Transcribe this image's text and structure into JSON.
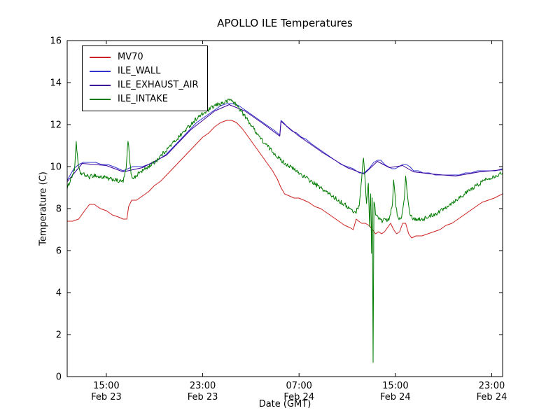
{
  "chart_data": {
    "type": "line",
    "title": "APOLLO ILE Temperatures",
    "xlabel": "Date (GMT)",
    "ylabel": "Temperature (C)",
    "x_unit": "hours since Feb 23 00:00 GMT",
    "xlim": [
      11.75,
      47.9
    ],
    "ylim": [
      0,
      16
    ],
    "yticks": [
      0,
      2,
      4,
      6,
      8,
      10,
      12,
      14,
      16
    ],
    "xticks": [
      {
        "x": 15,
        "label": "15:00",
        "sublabel": "Feb 23"
      },
      {
        "x": 23,
        "label": "23:00",
        "sublabel": "Feb 23"
      },
      {
        "x": 31,
        "label": "07:00",
        "sublabel": "Feb 24"
      },
      {
        "x": 39,
        "label": "15:00",
        "sublabel": "Feb 24"
      },
      {
        "x": 47,
        "label": "23:00",
        "sublabel": "Feb 24"
      }
    ],
    "grid": false,
    "legend_position": "upper left",
    "series": [
      {
        "name": "MV70",
        "color": "#cc2222",
        "noise": 0,
        "points": [
          [
            11.7,
            7.4
          ],
          [
            12.2,
            7.4
          ],
          [
            12.7,
            7.5
          ],
          [
            13.2,
            7.9
          ],
          [
            13.6,
            8.2
          ],
          [
            14.0,
            8.2
          ],
          [
            14.5,
            8.0
          ],
          [
            15.0,
            7.9
          ],
          [
            15.5,
            7.7
          ],
          [
            16.0,
            7.6
          ],
          [
            16.4,
            7.5
          ],
          [
            16.7,
            7.5
          ],
          [
            16.85,
            8.1
          ],
          [
            17.1,
            8.4
          ],
          [
            17.5,
            8.4
          ],
          [
            18.0,
            8.6
          ],
          [
            18.5,
            8.8
          ],
          [
            19.0,
            9.1
          ],
          [
            19.5,
            9.3
          ],
          [
            20.0,
            9.6
          ],
          [
            20.5,
            9.9
          ],
          [
            21.0,
            10.2
          ],
          [
            21.5,
            10.5
          ],
          [
            22.0,
            10.8
          ],
          [
            22.5,
            11.1
          ],
          [
            23.0,
            11.4
          ],
          [
            23.5,
            11.6
          ],
          [
            24.0,
            11.9
          ],
          [
            24.5,
            12.1
          ],
          [
            25.0,
            12.2
          ],
          [
            25.4,
            12.2
          ],
          [
            25.8,
            12.1
          ],
          [
            26.3,
            11.8
          ],
          [
            26.8,
            11.4
          ],
          [
            27.3,
            11.0
          ],
          [
            27.8,
            10.6
          ],
          [
            28.3,
            10.2
          ],
          [
            28.8,
            9.8
          ],
          [
            29.2,
            9.4
          ],
          [
            29.5,
            9.0
          ],
          [
            29.8,
            8.7
          ],
          [
            30.2,
            8.6
          ],
          [
            30.6,
            8.5
          ],
          [
            31.0,
            8.5
          ],
          [
            31.4,
            8.4
          ],
          [
            31.8,
            8.3
          ],
          [
            32.3,
            8.1
          ],
          [
            32.8,
            8.0
          ],
          [
            33.3,
            7.8
          ],
          [
            33.8,
            7.6
          ],
          [
            34.3,
            7.4
          ],
          [
            34.8,
            7.2
          ],
          [
            35.2,
            7.1
          ],
          [
            35.5,
            7.0
          ],
          [
            35.75,
            7.5
          ],
          [
            35.95,
            7.4
          ],
          [
            36.2,
            7.3
          ],
          [
            36.5,
            7.3
          ],
          [
            36.8,
            7.2
          ],
          [
            37.1,
            7.0
          ],
          [
            37.35,
            6.8
          ],
          [
            37.6,
            6.9
          ],
          [
            37.85,
            6.8
          ],
          [
            38.1,
            6.9
          ],
          [
            38.35,
            7.1
          ],
          [
            38.6,
            7.3
          ],
          [
            38.85,
            7.0
          ],
          [
            39.1,
            6.8
          ],
          [
            39.35,
            6.9
          ],
          [
            39.6,
            7.3
          ],
          [
            39.85,
            7.3
          ],
          [
            40.1,
            6.8
          ],
          [
            40.35,
            6.6
          ],
          [
            40.7,
            6.7
          ],
          [
            41.2,
            6.7
          ],
          [
            41.7,
            6.8
          ],
          [
            42.2,
            6.9
          ],
          [
            42.7,
            7.0
          ],
          [
            43.2,
            7.2
          ],
          [
            43.7,
            7.3
          ],
          [
            44.2,
            7.5
          ],
          [
            44.7,
            7.7
          ],
          [
            45.2,
            7.9
          ],
          [
            45.7,
            8.1
          ],
          [
            46.2,
            8.3
          ],
          [
            46.7,
            8.4
          ],
          [
            47.2,
            8.5
          ],
          [
            47.9,
            8.7
          ]
        ]
      },
      {
        "name": "ILE_WALL",
        "color": "#3333cc",
        "noise": 0,
        "points": [
          [
            11.7,
            9.3
          ],
          [
            12.0,
            9.6
          ],
          [
            12.3,
            9.9
          ],
          [
            12.7,
            10.1
          ],
          [
            13.1,
            10.2
          ],
          [
            13.6,
            10.2
          ],
          [
            14.1,
            10.2
          ],
          [
            14.6,
            10.1
          ],
          [
            15.1,
            10.1
          ],
          [
            15.6,
            10.0
          ],
          [
            16.0,
            9.9
          ],
          [
            16.4,
            9.8
          ],
          [
            16.8,
            9.9
          ],
          [
            17.2,
            10.0
          ],
          [
            17.6,
            10.0
          ],
          [
            18.0,
            10.0
          ],
          [
            18.5,
            10.1
          ],
          [
            19.0,
            10.2
          ],
          [
            19.5,
            10.4
          ],
          [
            20.0,
            10.6
          ],
          [
            20.5,
            10.9
          ],
          [
            21.0,
            11.2
          ],
          [
            21.5,
            11.5
          ],
          [
            22.0,
            11.8
          ],
          [
            22.5,
            12.1
          ],
          [
            23.0,
            12.3
          ],
          [
            23.5,
            12.5
          ],
          [
            24.0,
            12.7
          ],
          [
            24.5,
            12.9
          ],
          [
            25.0,
            13.0
          ],
          [
            25.5,
            13.0
          ],
          [
            26.0,
            12.9
          ],
          [
            26.5,
            12.7
          ],
          [
            27.0,
            12.5
          ],
          [
            27.5,
            12.3
          ],
          [
            28.0,
            12.1
          ],
          [
            28.5,
            11.9
          ],
          [
            29.0,
            11.7
          ],
          [
            29.4,
            11.5
          ],
          [
            29.5,
            12.2
          ],
          [
            29.7,
            12.1
          ],
          [
            30.0,
            11.9
          ],
          [
            30.4,
            11.7
          ],
          [
            30.8,
            11.6
          ],
          [
            31.2,
            11.4
          ],
          [
            31.6,
            11.3
          ],
          [
            32.0,
            11.1
          ],
          [
            32.5,
            10.9
          ],
          [
            33.0,
            10.7
          ],
          [
            33.5,
            10.5
          ],
          [
            34.0,
            10.3
          ],
          [
            34.5,
            10.1
          ],
          [
            35.0,
            10.0
          ],
          [
            35.5,
            9.9
          ],
          [
            36.0,
            9.7
          ],
          [
            36.4,
            9.7
          ],
          [
            36.8,
            9.9
          ],
          [
            37.2,
            10.2
          ],
          [
            37.5,
            10.3
          ],
          [
            37.8,
            10.3
          ],
          [
            38.1,
            10.1
          ],
          [
            38.4,
            10.0
          ],
          [
            38.7,
            9.9
          ],
          [
            39.0,
            9.9
          ],
          [
            39.3,
            10.0
          ],
          [
            39.6,
            10.1
          ],
          [
            39.9,
            10.1
          ],
          [
            40.2,
            10.0
          ],
          [
            40.5,
            9.8
          ],
          [
            40.9,
            9.8
          ],
          [
            41.3,
            9.7
          ],
          [
            41.8,
            9.7
          ],
          [
            42.3,
            9.6
          ],
          [
            42.8,
            9.6
          ],
          [
            43.3,
            9.6
          ],
          [
            43.8,
            9.6
          ],
          [
            44.3,
            9.6
          ],
          [
            44.8,
            9.7
          ],
          [
            45.3,
            9.7
          ],
          [
            45.8,
            9.8
          ],
          [
            46.3,
            9.8
          ],
          [
            46.8,
            9.8
          ],
          [
            47.3,
            9.8
          ],
          [
            47.9,
            9.9
          ]
        ]
      },
      {
        "name": "ILE_EXHAUST_AIR",
        "color": "#3a0099",
        "noise": 0,
        "points": [
          [
            11.7,
            9.25
          ],
          [
            13.0,
            10.15
          ],
          [
            15.0,
            10.05
          ],
          [
            16.4,
            9.75
          ],
          [
            18.0,
            9.95
          ],
          [
            20.0,
            10.55
          ],
          [
            22.0,
            11.75
          ],
          [
            24.0,
            12.65
          ],
          [
            25.2,
            12.95
          ],
          [
            26.5,
            12.65
          ],
          [
            28.0,
            12.05
          ],
          [
            29.4,
            11.45
          ],
          [
            29.5,
            12.15
          ],
          [
            31.0,
            11.45
          ],
          [
            33.0,
            10.65
          ],
          [
            35.0,
            9.95
          ],
          [
            36.4,
            9.65
          ],
          [
            37.5,
            10.25
          ],
          [
            38.5,
            9.95
          ],
          [
            39.6,
            10.05
          ],
          [
            40.5,
            9.75
          ],
          [
            42.0,
            9.65
          ],
          [
            44.0,
            9.55
          ],
          [
            46.0,
            9.75
          ],
          [
            47.9,
            9.85
          ]
        ]
      },
      {
        "name": "ILE_INTAKE",
        "color": "#007a00",
        "noise": 0.1,
        "points": [
          [
            11.7,
            8.8
          ],
          [
            11.9,
            9.2
          ],
          [
            12.1,
            9.5
          ],
          [
            12.35,
            9.8
          ],
          [
            12.5,
            11.2
          ],
          [
            12.65,
            10.1
          ],
          [
            12.8,
            9.7
          ],
          [
            13.2,
            9.6
          ],
          [
            13.6,
            9.5
          ],
          [
            14.0,
            9.6
          ],
          [
            14.4,
            9.5
          ],
          [
            14.8,
            9.5
          ],
          [
            15.2,
            9.4
          ],
          [
            15.6,
            9.4
          ],
          [
            16.0,
            9.3
          ],
          [
            16.4,
            9.3
          ],
          [
            16.65,
            9.9
          ],
          [
            16.8,
            11.3
          ],
          [
            16.95,
            10.2
          ],
          [
            17.1,
            9.5
          ],
          [
            17.4,
            9.5
          ],
          [
            17.7,
            9.7
          ],
          [
            18.0,
            9.8
          ],
          [
            18.5,
            10.0
          ],
          [
            19.0,
            10.2
          ],
          [
            19.5,
            10.5
          ],
          [
            20.0,
            10.8
          ],
          [
            20.5,
            11.1
          ],
          [
            21.0,
            11.4
          ],
          [
            21.5,
            11.7
          ],
          [
            22.0,
            12.0
          ],
          [
            22.5,
            12.3
          ],
          [
            23.0,
            12.5
          ],
          [
            23.5,
            12.7
          ],
          [
            24.0,
            12.9
          ],
          [
            24.5,
            13.0
          ],
          [
            25.0,
            13.1
          ],
          [
            25.3,
            13.2
          ],
          [
            25.7,
            13.0
          ],
          [
            26.0,
            12.8
          ],
          [
            26.5,
            12.4
          ],
          [
            27.0,
            12.0
          ],
          [
            27.5,
            11.6
          ],
          [
            28.0,
            11.2
          ],
          [
            28.5,
            10.9
          ],
          [
            29.0,
            10.6
          ],
          [
            29.5,
            10.3
          ],
          [
            30.0,
            10.1
          ],
          [
            30.5,
            9.9
          ],
          [
            31.0,
            9.7
          ],
          [
            31.5,
            9.5
          ],
          [
            32.0,
            9.3
          ],
          [
            32.5,
            9.1
          ],
          [
            33.0,
            8.9
          ],
          [
            33.5,
            8.7
          ],
          [
            34.0,
            8.5
          ],
          [
            34.5,
            8.3
          ],
          [
            35.0,
            8.1
          ],
          [
            35.4,
            7.9
          ],
          [
            35.7,
            7.8
          ],
          [
            36.0,
            8.2
          ],
          [
            36.2,
            9.4
          ],
          [
            36.35,
            10.5
          ],
          [
            36.5,
            9.2
          ],
          [
            36.6,
            8.2
          ],
          [
            36.75,
            9.3
          ],
          [
            36.85,
            7.2
          ],
          [
            36.95,
            8.8
          ],
          [
            37.02,
            5.8
          ],
          [
            37.08,
            8.6
          ],
          [
            37.15,
            0.6
          ],
          [
            37.22,
            8.4
          ],
          [
            37.35,
            7.8
          ],
          [
            37.5,
            7.6
          ],
          [
            37.7,
            7.5
          ],
          [
            37.9,
            7.4
          ],
          [
            38.1,
            7.5
          ],
          [
            38.35,
            7.4
          ],
          [
            38.55,
            7.6
          ],
          [
            38.75,
            8.2
          ],
          [
            38.85,
            9.4
          ],
          [
            39.0,
            8.4
          ],
          [
            39.15,
            7.7
          ],
          [
            39.35,
            7.5
          ],
          [
            39.55,
            7.7
          ],
          [
            39.75,
            8.6
          ],
          [
            39.85,
            9.6
          ],
          [
            40.0,
            8.7
          ],
          [
            40.15,
            7.9
          ],
          [
            40.35,
            7.6
          ],
          [
            40.6,
            7.5
          ],
          [
            40.9,
            7.5
          ],
          [
            41.3,
            7.5
          ],
          [
            41.7,
            7.6
          ],
          [
            42.1,
            7.7
          ],
          [
            42.5,
            7.8
          ],
          [
            43.0,
            8.0
          ],
          [
            43.5,
            8.2
          ],
          [
            44.0,
            8.4
          ],
          [
            44.5,
            8.6
          ],
          [
            45.0,
            8.8
          ],
          [
            45.5,
            9.0
          ],
          [
            46.0,
            9.2
          ],
          [
            46.5,
            9.4
          ],
          [
            47.0,
            9.5
          ],
          [
            47.5,
            9.6
          ],
          [
            47.9,
            9.7
          ]
        ]
      }
    ]
  }
}
